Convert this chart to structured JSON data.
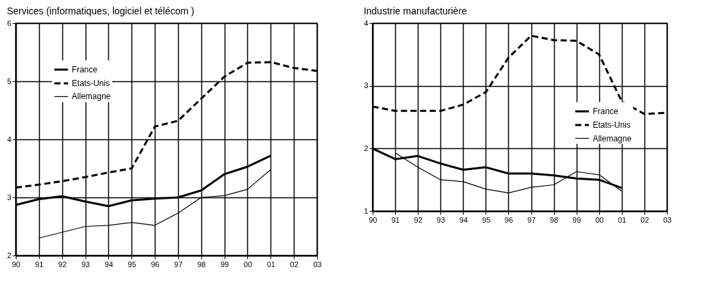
{
  "chart_data": [
    {
      "type": "line",
      "title": "Services (informatiques, logiciel et télécom )",
      "categories": [
        "90",
        "91",
        "92",
        "93",
        "94",
        "95",
        "96",
        "97",
        "98",
        "99",
        "00",
        "01",
        "02",
        "03"
      ],
      "ylim": [
        2,
        6
      ],
      "yticks": [
        2,
        3,
        4,
        5,
        6
      ],
      "grid": true,
      "legend": "top left",
      "series": [
        {
          "name": "France",
          "color": "#000000",
          "line_style": "solid",
          "values": [
            2.87,
            2.97,
            3.02,
            2.93,
            2.85,
            2.95,
            2.98,
            3.0,
            3.12,
            3.4,
            3.53,
            3.72,
            null,
            null
          ]
        },
        {
          "name": "Etats-Unis",
          "color": "#000000",
          "line_style": "dashed",
          "values": [
            3.17,
            3.22,
            3.28,
            3.35,
            3.43,
            3.5,
            4.22,
            4.32,
            4.7,
            5.08,
            5.32,
            5.33,
            5.23,
            5.18
          ]
        },
        {
          "name": "Allemagne",
          "color": "#000000",
          "line_style": "solid",
          "values": [
            null,
            2.3,
            2.4,
            2.5,
            2.52,
            2.57,
            2.52,
            2.73,
            3.0,
            3.03,
            3.14,
            3.48,
            null,
            null
          ]
        }
      ]
    },
    {
      "type": "line",
      "title": "Industrie manufacturière",
      "categories": [
        "90",
        "91",
        "92",
        "93",
        "94",
        "95",
        "96",
        "97",
        "98",
        "99",
        "00",
        "01",
        "02",
        "03"
      ],
      "ylim": [
        1,
        4
      ],
      "yticks": [
        1,
        2,
        3,
        4
      ],
      "grid": true,
      "legend": "right",
      "series": [
        {
          "name": "France",
          "color": "#000000",
          "line_style": "solid",
          "values": [
            2.0,
            1.83,
            1.88,
            1.76,
            1.66,
            1.7,
            1.6,
            1.6,
            1.57,
            1.52,
            1.5,
            1.37,
            null,
            null
          ]
        },
        {
          "name": "Etats-Unis",
          "color": "#000000",
          "line_style": "dashed",
          "values": [
            2.67,
            2.6,
            2.6,
            2.6,
            2.7,
            2.9,
            3.45,
            3.8,
            3.73,
            3.72,
            3.5,
            2.75,
            2.55,
            2.57
          ]
        },
        {
          "name": "Allemagne",
          "color": "#000000",
          "line_style": "solid",
          "values": [
            null,
            1.93,
            1.7,
            1.5,
            1.47,
            1.35,
            1.29,
            1.38,
            1.42,
            1.63,
            1.58,
            1.32,
            null,
            null
          ]
        }
      ]
    }
  ]
}
